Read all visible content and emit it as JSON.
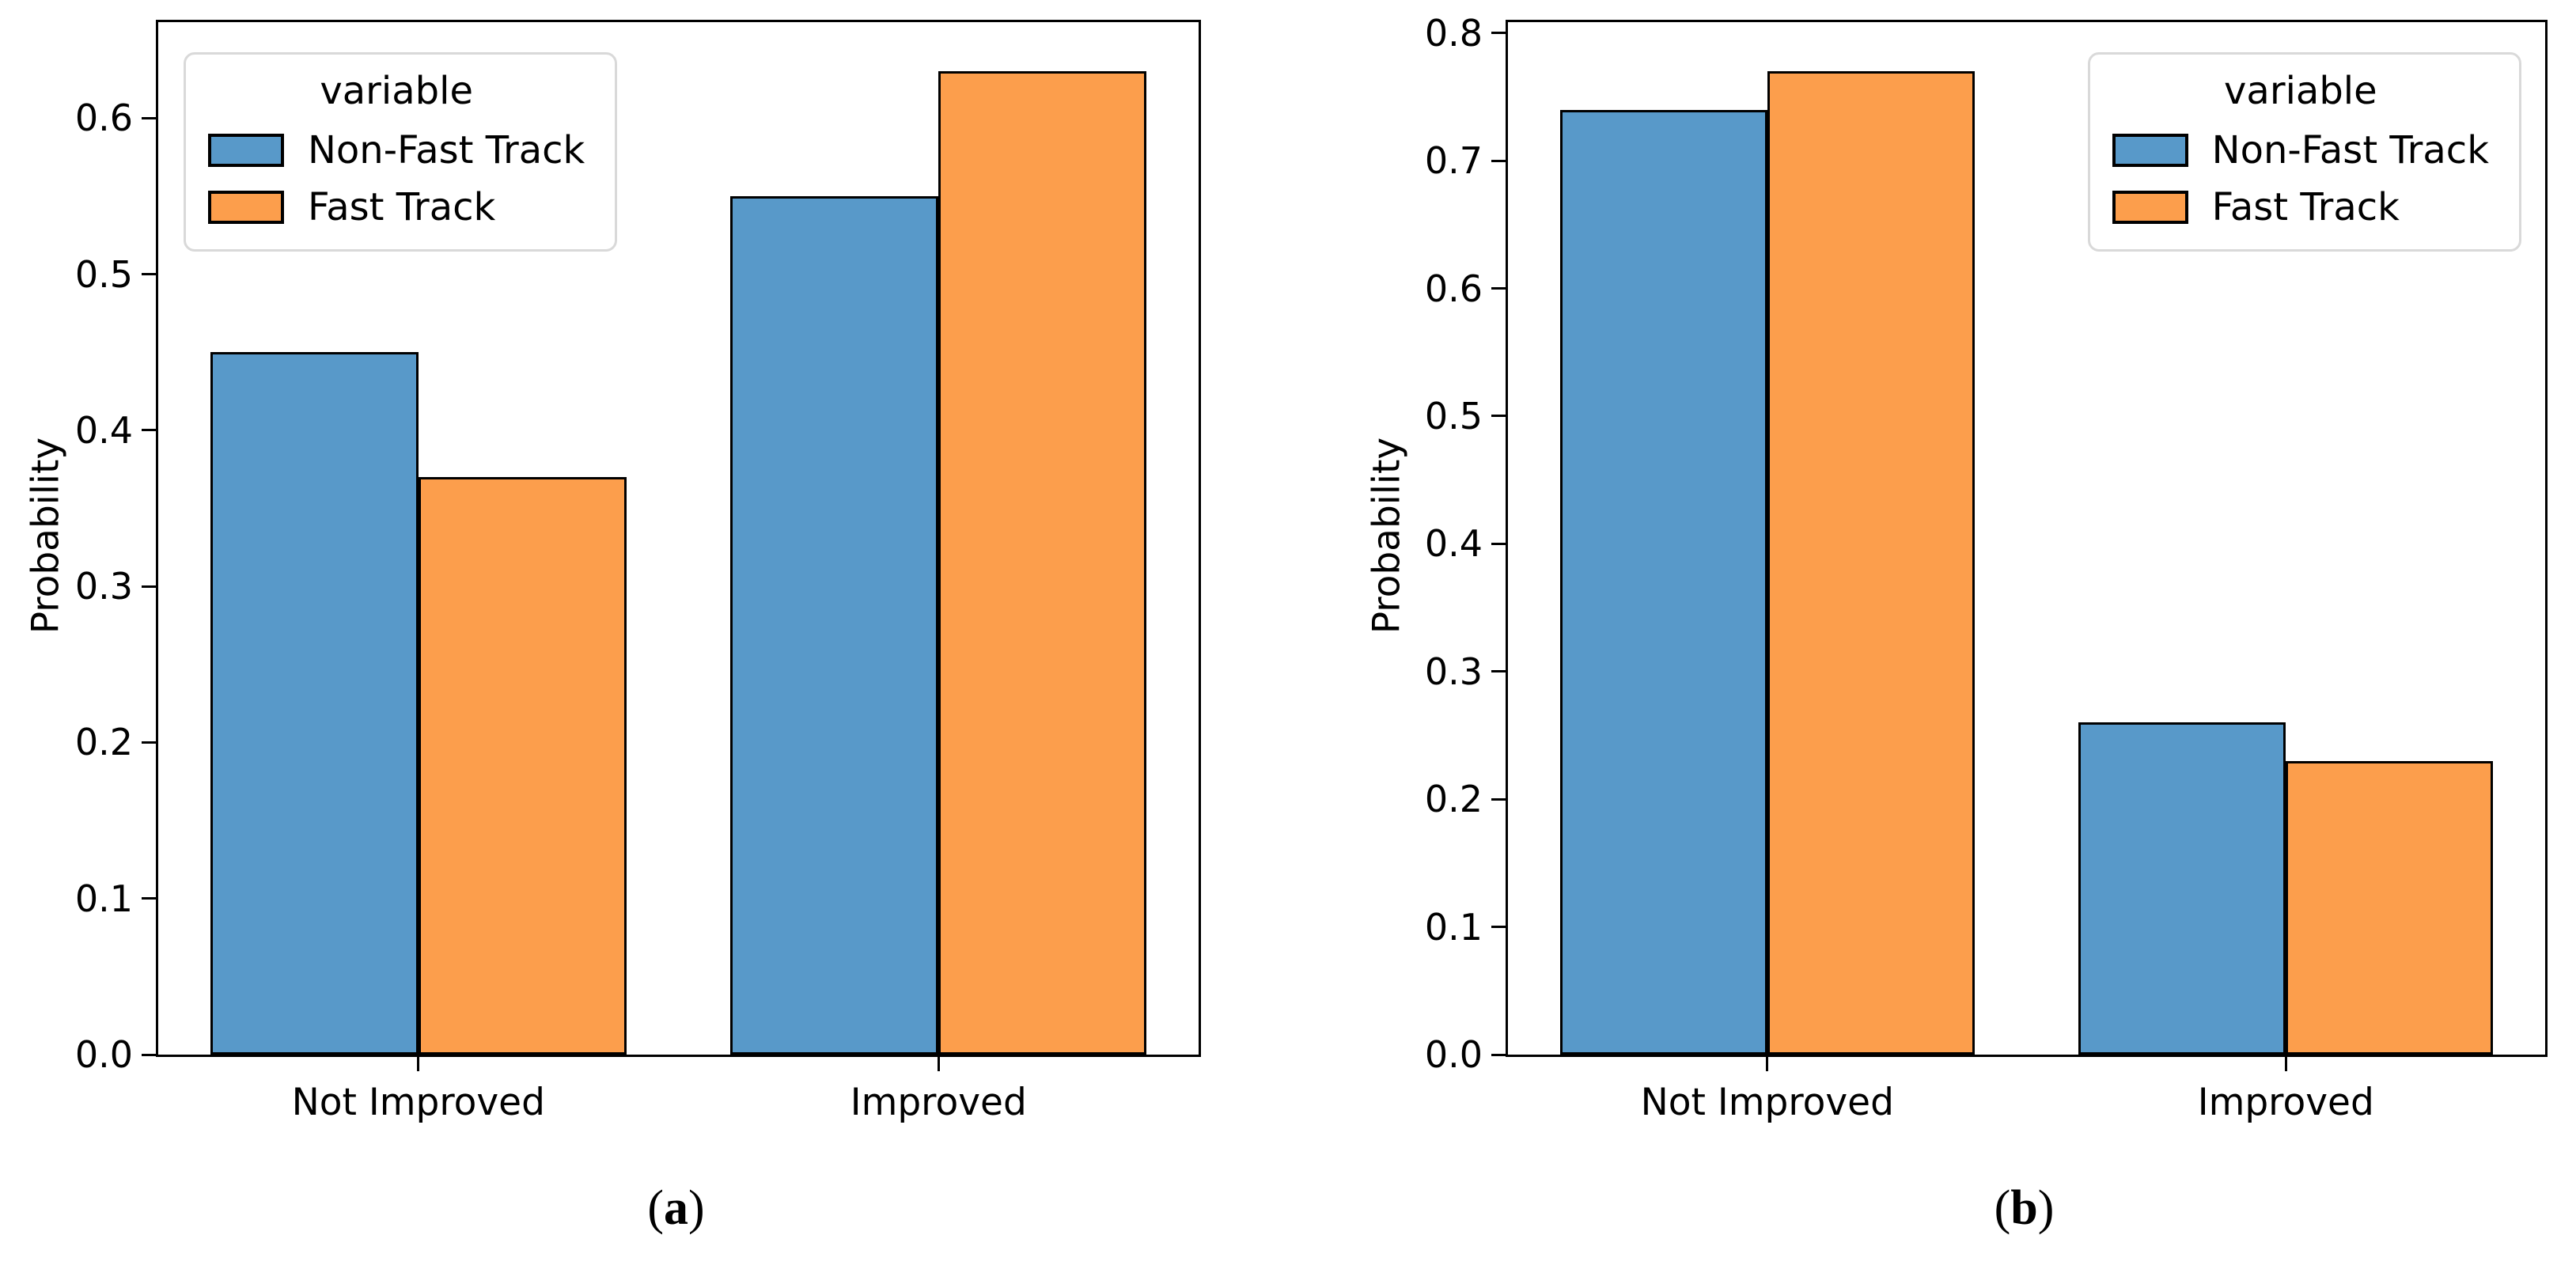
{
  "figure": {
    "background": "#ffffff",
    "captions": {
      "a": {
        "open": "(",
        "letter": "a",
        "close": ")"
      },
      "b": {
        "open": "(",
        "letter": "b",
        "close": ")"
      }
    }
  },
  "colors": {
    "non_fast_track": "#5899C9",
    "fast_track": "#FC9E4C",
    "bar_edge": "#000000",
    "axis": "#000000",
    "legend_border": "#d9d9d9"
  },
  "chart_data": [
    {
      "id": "a",
      "type": "bar",
      "title": "",
      "caption": "(a)",
      "xlabel": "",
      "ylabel": "Probability",
      "categories": [
        "Not Improved",
        "Improved"
      ],
      "series": [
        {
          "name": "Non-Fast Track",
          "color": "#5899C9",
          "values": [
            0.45,
            0.55
          ]
        },
        {
          "name": "Fast Track",
          "color": "#FC9E4C",
          "values": [
            0.37,
            0.63
          ]
        }
      ],
      "legend_title": "variable",
      "legend_position": "upper-left",
      "ylim": [
        0.0,
        0.6615
      ],
      "ytick_labels": [
        "0.0",
        "0.1",
        "0.2",
        "0.3",
        "0.4",
        "0.5",
        "0.6"
      ],
      "grid": false
    },
    {
      "id": "b",
      "type": "bar",
      "title": "",
      "caption": "(b)",
      "xlabel": "",
      "ylabel": "Probability",
      "categories": [
        "Not Improved",
        "Improved"
      ],
      "series": [
        {
          "name": "Non-Fast Track",
          "color": "#5899C9",
          "values": [
            0.74,
            0.26
          ]
        },
        {
          "name": "Fast Track",
          "color": "#FC9E4C",
          "values": [
            0.77,
            0.23
          ]
        }
      ],
      "legend_title": "variable",
      "legend_position": "upper-right",
      "ylim": [
        0.0,
        0.8085
      ],
      "ytick_labels": [
        "0.0",
        "0.1",
        "0.2",
        "0.3",
        "0.4",
        "0.5",
        "0.6",
        "0.7",
        "0.8"
      ],
      "grid": false
    }
  ]
}
